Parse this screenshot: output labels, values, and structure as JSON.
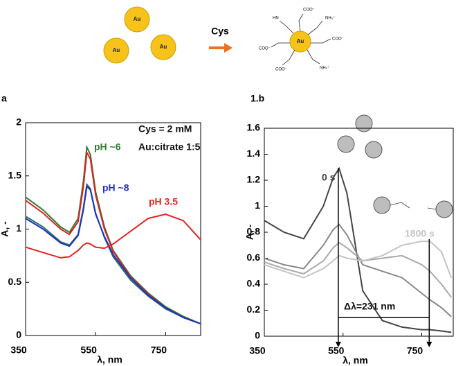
{
  "scheme": {
    "particle_label": "Au",
    "reagent": "Cys",
    "groups": [
      "COO⁻",
      "NH₃⁺",
      "HN"
    ]
  },
  "chart_data": [
    {
      "type": "line",
      "title": "a",
      "xlabel": "λ, nm",
      "ylabel": "A, -",
      "annotations": [
        "Cys = 2 mM",
        "Au:citrate 1:5"
      ],
      "x": [
        350,
        400,
        450,
        475,
        500,
        515,
        525,
        535,
        550,
        575,
        600,
        650,
        700,
        750,
        800,
        850
      ],
      "series": [
        {
          "name": "pH ~6",
          "color": "#2e7d32",
          "values": [
            1.3,
            1.18,
            1.02,
            0.97,
            1.1,
            1.45,
            1.77,
            1.7,
            1.35,
            1.02,
            0.8,
            0.56,
            0.4,
            0.27,
            0.18,
            0.11
          ]
        },
        {
          "color": "#e02020",
          "values": [
            1.27,
            1.15,
            1.0,
            0.95,
            1.07,
            1.4,
            1.72,
            1.66,
            1.32,
            1.0,
            0.79,
            0.55,
            0.39,
            0.26,
            0.17,
            0.11
          ]
        },
        {
          "color": "#2a6f6a",
          "values": [
            1.12,
            1.02,
            0.88,
            0.85,
            0.95,
            1.2,
            1.42,
            1.38,
            1.15,
            0.92,
            0.74,
            0.52,
            0.37,
            0.25,
            0.17,
            0.11
          ]
        },
        {
          "name": "pH ~8",
          "color": "#2030c0",
          "values": [
            1.1,
            1.0,
            0.87,
            0.84,
            0.94,
            1.18,
            1.4,
            1.37,
            1.14,
            0.93,
            0.76,
            0.54,
            0.38,
            0.26,
            0.17,
            0.11
          ]
        },
        {
          "name": "pH 3.5",
          "color": "#e82020",
          "values": [
            0.83,
            0.78,
            0.73,
            0.74,
            0.8,
            0.85,
            0.87,
            0.86,
            0.83,
            0.82,
            0.86,
            0.98,
            1.1,
            1.14,
            1.08,
            0.9
          ]
        }
      ],
      "xlim": [
        350,
        850
      ],
      "xticks": [
        350,
        550,
        750
      ],
      "ylim": [
        0,
        2
      ],
      "yticks": [
        0,
        0.5,
        1,
        1.5,
        2
      ]
    },
    {
      "type": "line",
      "title": "1.b",
      "xlabel": "λ, nm",
      "ylabel": "A, -",
      "annotations": [
        "Δλ=231 nm"
      ],
      "vlines": [
        538,
        769
      ],
      "x": [
        350,
        400,
        450,
        500,
        525,
        540,
        560,
        600,
        650,
        700,
        750,
        771,
        800,
        825
      ],
      "series": [
        {
          "name": "0 s",
          "color": "#444444",
          "values": [
            0.89,
            0.8,
            0.75,
            1.0,
            1.22,
            1.29,
            1.1,
            0.35,
            0.12,
            0.07,
            0.05,
            0.05,
            0.04,
            0.03
          ]
        },
        {
          "color": "#888888",
          "values": [
            0.6,
            0.55,
            0.52,
            0.7,
            0.82,
            0.86,
            0.78,
            0.55,
            0.5,
            0.45,
            0.33,
            0.28,
            0.22,
            0.15
          ]
        },
        {
          "color": "#aaaaaa",
          "values": [
            0.57,
            0.52,
            0.48,
            0.58,
            0.68,
            0.72,
            0.68,
            0.58,
            0.6,
            0.62,
            0.55,
            0.5,
            0.4,
            0.3
          ]
        },
        {
          "name": "1800 s",
          "color": "#c4c4c4",
          "values": [
            0.55,
            0.5,
            0.45,
            0.52,
            0.58,
            0.62,
            0.6,
            0.58,
            0.62,
            0.7,
            0.73,
            0.73,
            0.65,
            0.45
          ]
        }
      ],
      "xlim": [
        350,
        830
      ],
      "xticks": [
        350,
        550,
        750
      ],
      "ylim": [
        0,
        1.6
      ],
      "yticks": [
        0,
        0.2,
        0.4,
        0.6,
        0.8,
        1,
        1.2,
        1.4,
        1.6
      ]
    }
  ]
}
